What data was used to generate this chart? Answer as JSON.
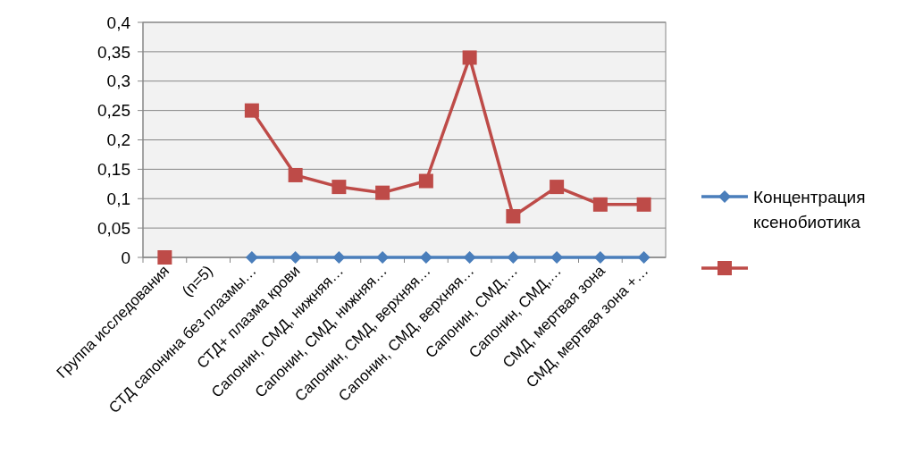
{
  "chart_data": {
    "type": "line",
    "categories": [
      "Группа исследования",
      "(n=5)",
      "СТД сапонина без плазмы…",
      "СТД+ плазма крови",
      "Сапонин, СМД, нижняя…",
      "Сапонин, СМД, нижняя…",
      "Сапонин, СМД, верхняя…",
      "Сапонин, СМД, верхняя…",
      "Сапонин, СМД,…",
      "Сапонин, СМД,…",
      "СМД, мертвая зона",
      "СМД, мертвая зона +…"
    ],
    "series": [
      {
        "name": "Концентрация ксенобиотика",
        "color": "#4a7ebb",
        "marker": "diamond",
        "values": [
          null,
          null,
          0,
          0,
          0,
          0,
          0,
          0,
          0,
          0,
          0,
          0
        ]
      },
      {
        "color": "#be4b48",
        "marker": "square",
        "values": [
          0,
          null,
          0.25,
          0.14,
          0.12,
          0.11,
          0.13,
          0.34,
          0.07,
          0.12,
          0.09,
          0.09
        ]
      }
    ],
    "ylim": [
      0,
      0.4
    ],
    "yticks": [
      {
        "value": 0,
        "label": "0"
      },
      {
        "value": 0.05,
        "label": "0,05"
      },
      {
        "value": 0.1,
        "label": "0,1"
      },
      {
        "value": 0.15,
        "label": "0,15"
      },
      {
        "value": 0.2,
        "label": "0,2"
      },
      {
        "value": 0.25,
        "label": "0,25"
      },
      {
        "value": 0.3,
        "label": "0,3"
      },
      {
        "value": 0.35,
        "label": "0,35"
      },
      {
        "value": 0.4,
        "label": "0,4"
      }
    ],
    "grid": "y",
    "legend": "right",
    "line_style": "solid"
  }
}
